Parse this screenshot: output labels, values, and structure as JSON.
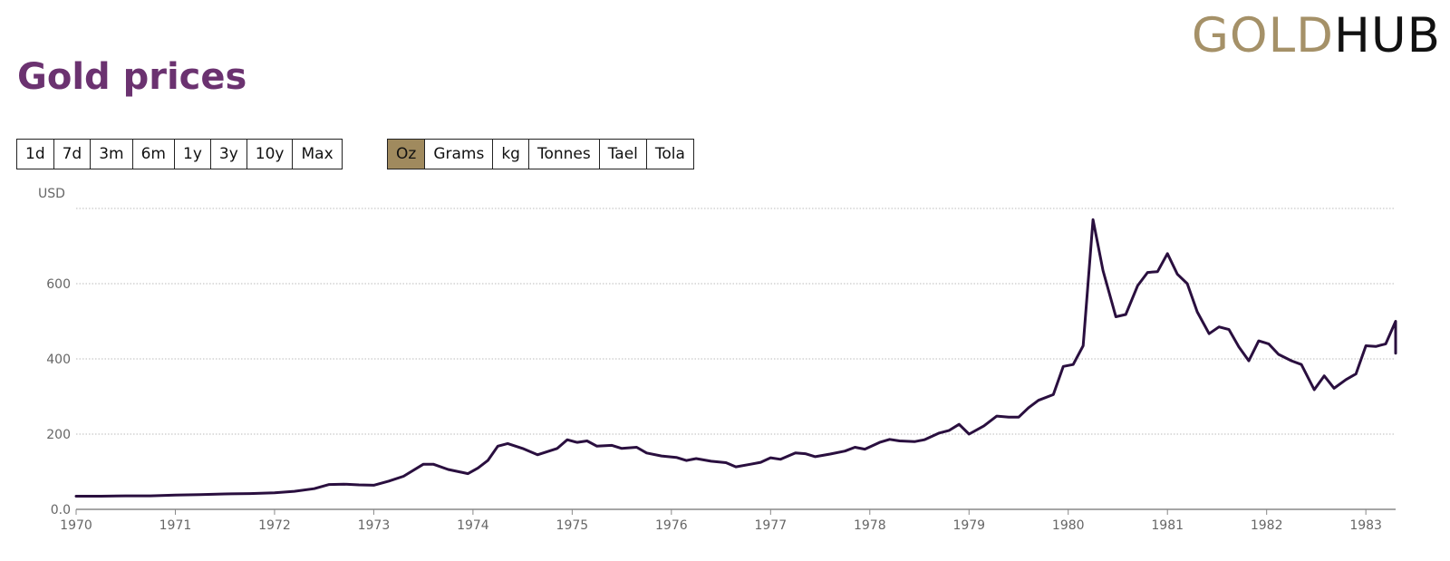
{
  "brand": {
    "gold": "GOLD",
    "hub": "HUB"
  },
  "title": "Gold prices",
  "range_buttons": [
    {
      "label": "1d",
      "active": false
    },
    {
      "label": "7d",
      "active": false
    },
    {
      "label": "3m",
      "active": false
    },
    {
      "label": "6m",
      "active": false
    },
    {
      "label": "1y",
      "active": false
    },
    {
      "label": "3y",
      "active": false
    },
    {
      "label": "10y",
      "active": false
    },
    {
      "label": "Max",
      "active": false
    }
  ],
  "unit_buttons": [
    {
      "label": "Oz",
      "active": true
    },
    {
      "label": "Grams",
      "active": false
    },
    {
      "label": "kg",
      "active": false
    },
    {
      "label": "Tonnes",
      "active": false
    },
    {
      "label": "Tael",
      "active": false
    },
    {
      "label": "Tola",
      "active": false
    }
  ],
  "colors": {
    "line": "#2a0f3f",
    "grid": "#bbbbbb",
    "title": "#6b3270",
    "gold": "#a59168",
    "active_button": "#a08a5e"
  },
  "chart_data": {
    "type": "line",
    "ylabel": "USD",
    "ylim": [
      0,
      800
    ],
    "xlim": [
      1970,
      1983.3
    ],
    "yticks": [
      {
        "value": 0,
        "label": "0.0"
      },
      {
        "value": 200,
        "label": "200"
      },
      {
        "value": 400,
        "label": "400"
      },
      {
        "value": 600,
        "label": "600"
      },
      {
        "value": 800,
        "label": ""
      }
    ],
    "xticks": [
      "1970",
      "1971",
      "1972",
      "1973",
      "1974",
      "1975",
      "1976",
      "1977",
      "1978",
      "1979",
      "1980",
      "1981",
      "1982",
      "1983"
    ],
    "grid": true,
    "series": [
      {
        "name": "",
        "points": [
          [
            1970.0,
            35
          ],
          [
            1970.25,
            35
          ],
          [
            1970.5,
            36
          ],
          [
            1970.75,
            36
          ],
          [
            1971.0,
            38
          ],
          [
            1971.25,
            39
          ],
          [
            1971.5,
            41
          ],
          [
            1971.75,
            42
          ],
          [
            1972.0,
            44
          ],
          [
            1972.2,
            48
          ],
          [
            1972.4,
            55
          ],
          [
            1972.55,
            66
          ],
          [
            1972.7,
            67
          ],
          [
            1972.85,
            65
          ],
          [
            1973.0,
            64
          ],
          [
            1973.15,
            75
          ],
          [
            1973.3,
            88
          ],
          [
            1973.5,
            120
          ],
          [
            1973.6,
            120
          ],
          [
            1973.75,
            106
          ],
          [
            1973.95,
            95
          ],
          [
            1974.05,
            110
          ],
          [
            1974.15,
            130
          ],
          [
            1974.25,
            168
          ],
          [
            1974.35,
            175
          ],
          [
            1974.5,
            162
          ],
          [
            1974.65,
            145
          ],
          [
            1974.85,
            162
          ],
          [
            1974.95,
            185
          ],
          [
            1975.05,
            178
          ],
          [
            1975.15,
            182
          ],
          [
            1975.25,
            168
          ],
          [
            1975.4,
            170
          ],
          [
            1975.5,
            162
          ],
          [
            1975.65,
            165
          ],
          [
            1975.75,
            150
          ],
          [
            1975.9,
            142
          ],
          [
            1976.05,
            138
          ],
          [
            1976.15,
            130
          ],
          [
            1976.25,
            135
          ],
          [
            1976.4,
            128
          ],
          [
            1976.55,
            124
          ],
          [
            1976.65,
            113
          ],
          [
            1976.8,
            120
          ],
          [
            1976.9,
            125
          ],
          [
            1977.0,
            137
          ],
          [
            1977.1,
            133
          ],
          [
            1977.25,
            150
          ],
          [
            1977.35,
            148
          ],
          [
            1977.45,
            140
          ],
          [
            1977.6,
            147
          ],
          [
            1977.75,
            155
          ],
          [
            1977.85,
            165
          ],
          [
            1977.95,
            160
          ],
          [
            1978.1,
            178
          ],
          [
            1978.2,
            186
          ],
          [
            1978.3,
            182
          ],
          [
            1978.45,
            180
          ],
          [
            1978.55,
            185
          ],
          [
            1978.7,
            203
          ],
          [
            1978.8,
            210
          ],
          [
            1978.9,
            226
          ],
          [
            1979.0,
            200
          ],
          [
            1979.15,
            222
          ],
          [
            1979.28,
            248
          ],
          [
            1979.4,
            245
          ],
          [
            1979.5,
            245
          ],
          [
            1979.6,
            270
          ],
          [
            1979.7,
            290
          ],
          [
            1979.85,
            305
          ],
          [
            1979.95,
            380
          ],
          [
            1980.05,
            385
          ],
          [
            1980.15,
            435
          ],
          [
            1980.25,
            770
          ],
          [
            1980.35,
            635
          ],
          [
            1980.48,
            512
          ],
          [
            1980.58,
            518
          ],
          [
            1980.7,
            595
          ],
          [
            1980.8,
            630
          ],
          [
            1980.9,
            632
          ],
          [
            1981.0,
            680
          ],
          [
            1981.1,
            625
          ],
          [
            1981.2,
            600
          ],
          [
            1981.3,
            525
          ],
          [
            1981.42,
            467
          ],
          [
            1981.52,
            485
          ],
          [
            1981.62,
            478
          ],
          [
            1981.72,
            432
          ],
          [
            1981.82,
            395
          ],
          [
            1981.92,
            448
          ],
          [
            1982.02,
            440
          ],
          [
            1982.12,
            412
          ],
          [
            1982.25,
            395
          ],
          [
            1982.35,
            385
          ],
          [
            1982.48,
            318
          ],
          [
            1982.58,
            355
          ],
          [
            1982.68,
            322
          ],
          [
            1982.8,
            345
          ],
          [
            1982.9,
            360
          ],
          [
            1983.0,
            435
          ],
          [
            1983.1,
            433
          ],
          [
            1983.2,
            440
          ],
          [
            1983.3,
            500
          ],
          [
            1983.4,
            472
          ],
          [
            1983.5,
            415
          ],
          [
            1983.55,
            430
          ]
        ]
      }
    ]
  }
}
